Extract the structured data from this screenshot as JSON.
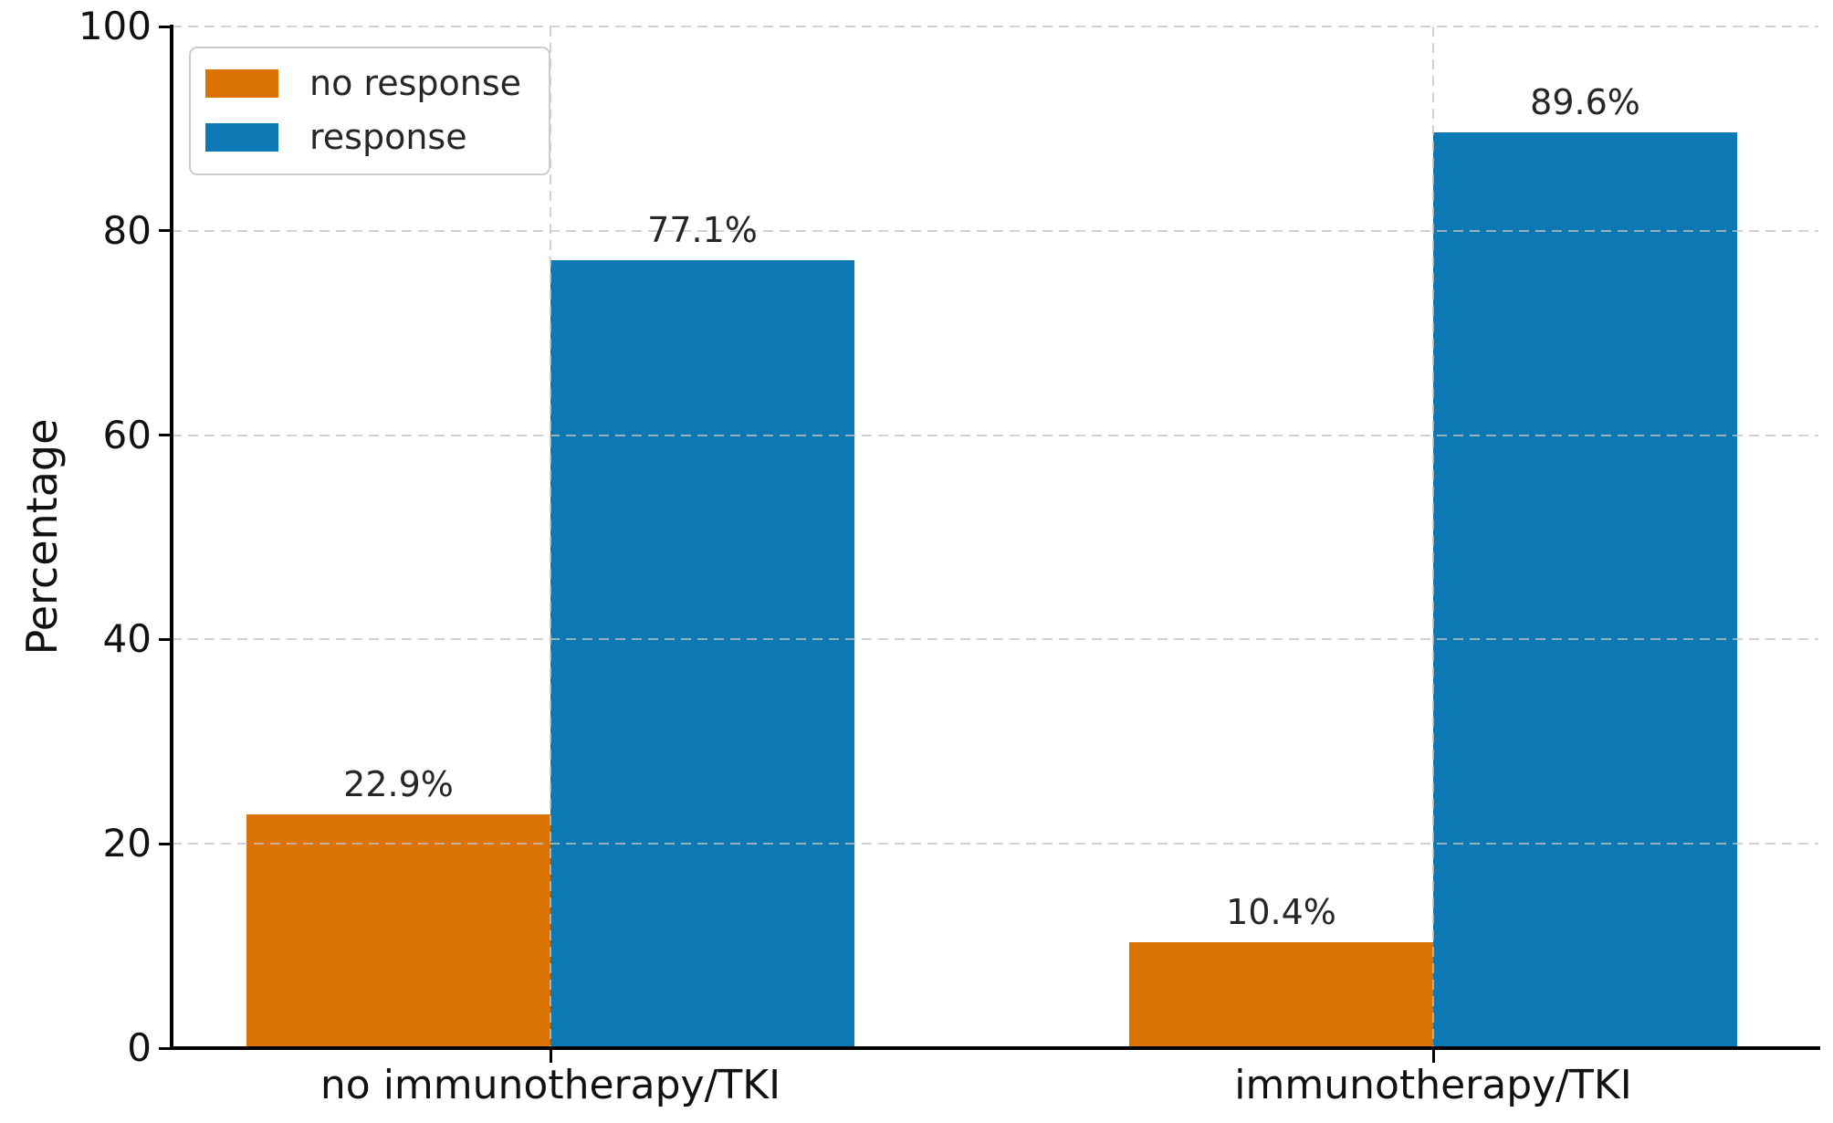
{
  "chart_data": {
    "type": "bar",
    "title": "",
    "xlabel": "",
    "ylabel": "Percentage",
    "ylim": [
      0,
      100
    ],
    "yticks": [
      0,
      20,
      40,
      60,
      80,
      100
    ],
    "categories": [
      "no immunotherapy/TKI",
      "immunotherapy/TKI"
    ],
    "series": [
      {
        "name": "no response",
        "color": "#db7303",
        "values": [
          22.9,
          10.4
        ],
        "labels": [
          "22.9%",
          "10.4%"
        ]
      },
      {
        "name": "response",
        "color": "#0c78b4",
        "values": [
          77.1,
          89.6
        ],
        "labels": [
          "77.1%",
          "89.6%"
        ]
      }
    ],
    "grid": true,
    "grid_style": "dashed",
    "legend_position": "upper-left",
    "axis_color": "#000000",
    "grid_color": "#c3c3c3",
    "background_color": "#ffffff"
  }
}
